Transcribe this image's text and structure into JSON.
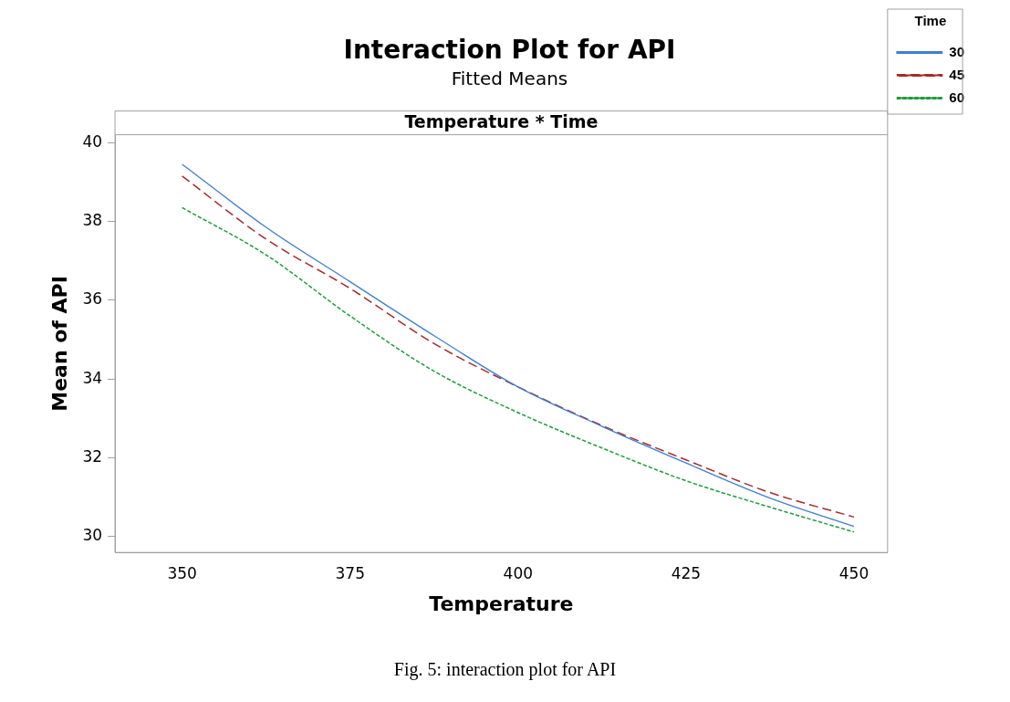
{
  "chart_data": {
    "type": "line",
    "title": "Interaction Plot for API",
    "subtitle": "Fitted Means",
    "xlabel": "Temperature",
    "ylabel": "Mean of API",
    "legend_title": "Time",
    "x": [
      350,
      362.5,
      375,
      387.5,
      400,
      412.5,
      425,
      437.5,
      450
    ],
    "series": [
      {
        "name": "30",
        "color": "#3f7fcf",
        "line_style": "solid",
        "values": [
          39.45,
          37.85,
          36.47,
          35.1,
          33.8,
          32.8,
          31.87,
          30.98,
          30.26
        ]
      },
      {
        "name": "45",
        "color": "#a52a2a",
        "line_style": "dashed",
        "values": [
          39.15,
          37.55,
          36.3,
          34.9,
          33.8,
          32.82,
          31.95,
          31.12,
          30.5
        ]
      },
      {
        "name": "60",
        "color": "#1e9c3c",
        "line_style": "dashed",
        "values": [
          38.35,
          37.15,
          35.6,
          34.2,
          33.15,
          32.25,
          31.42,
          30.75,
          30.12
        ]
      }
    ],
    "xlim": [
      340,
      455
    ],
    "xticks": [
      350,
      375,
      400,
      425,
      450
    ],
    "ylim": [
      29.6,
      40.2
    ],
    "yticks": [
      30,
      32,
      34,
      36,
      38,
      40
    ],
    "grid": false,
    "legend": "top right",
    "marker": "none",
    "annotations": [
      "Temperature * Time",
      "Fig. 5: interaction plot for API"
    ]
  }
}
